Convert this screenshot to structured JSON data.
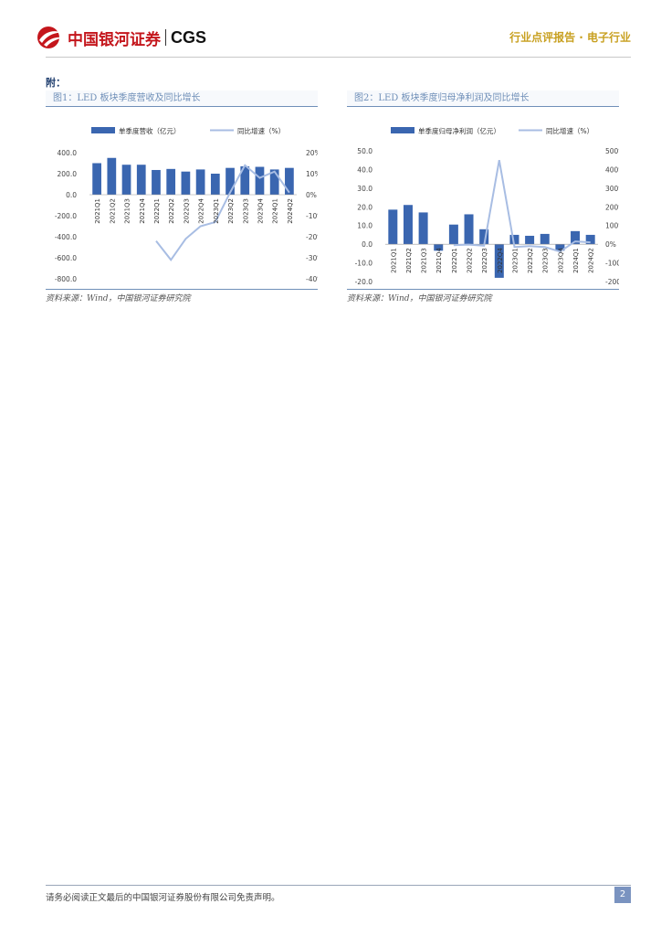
{
  "header": {
    "brand_cn": "中国银河证券",
    "brand_en": "CGS",
    "report_type": "行业点评报告 · 电子行业",
    "brand_color": "#c4161c"
  },
  "appendix_label": "附：",
  "figures": [
    {
      "title": "图1：LED 板块季度营收及同比增长",
      "source": "资料来源：Wind，中国银河证券研究院"
    },
    {
      "title": "图2：LED 板块季度归母净利润及同比增长",
      "source": "资料来源：Wind，中国银河证券研究院"
    }
  ],
  "chart_data": [
    {
      "type": "bar",
      "categories": [
        "2021Q1",
        "2021Q2",
        "2021Q3",
        "2021Q4",
        "2022Q1",
        "2022Q2",
        "2022Q3",
        "2022Q4",
        "2023Q1",
        "2023Q2",
        "2023Q3",
        "2023Q4",
        "2024Q1",
        "2024Q2"
      ],
      "series": [
        {
          "name": "单季度营收（亿元）",
          "type": "bar",
          "axis": "left",
          "color": "#3a66b0",
          "values": [
            300,
            350,
            285,
            285,
            235,
            245,
            220,
            240,
            200,
            255,
            270,
            265,
            240,
            255
          ]
        },
        {
          "name": "同比增速（%）",
          "type": "line",
          "axis": "right",
          "color": "#a8bde3",
          "values": [
            null,
            null,
            null,
            null,
            -22,
            -31,
            -21,
            -15,
            -13,
            1,
            14,
            8,
            11,
            1
          ]
        }
      ],
      "left_axis": {
        "ticks": [
          "400.0",
          "200.0",
          "0.0",
          "-200.0",
          "-400.0",
          "-600.0",
          "-800.0"
        ],
        "range": [
          -800,
          400
        ]
      },
      "right_axis": {
        "ticks": [
          "20%",
          "10%",
          "0%",
          "-10%",
          "-20%",
          "-30%",
          "-40%"
        ],
        "range": [
          -40,
          20
        ]
      }
    },
    {
      "type": "bar",
      "categories": [
        "2021Q1",
        "2021Q2",
        "2021Q3",
        "2021Q4",
        "2022Q1",
        "2022Q2",
        "2022Q3",
        "2022Q4",
        "2023Q1",
        "2023Q2",
        "2023Q3",
        "2023Q4",
        "2024Q1",
        "2024Q2"
      ],
      "series": [
        {
          "name": "单季度归母净利润（亿元）",
          "type": "bar",
          "axis": "left",
          "color": "#3a66b0",
          "values": [
            18.5,
            21,
            17,
            -3.5,
            10.5,
            16,
            8,
            -18,
            5,
            4.5,
            5.5,
            -3.5,
            7,
            5
          ]
        },
        {
          "name": "同比增速（%）",
          "type": "line",
          "axis": "right",
          "color": "#a8bde3",
          "values": [
            null,
            null,
            null,
            null,
            -5,
            -2,
            -8,
            450,
            -15,
            -10,
            -15,
            -40,
            15,
            10
          ]
        }
      ],
      "left_axis": {
        "ticks": [
          "50.0",
          "40.0",
          "30.0",
          "20.0",
          "10.0",
          "0.0",
          "-10.0",
          "-20.0"
        ],
        "range": [
          -20,
          50
        ]
      },
      "right_axis": {
        "ticks": [
          "500%",
          "400%",
          "300%",
          "200%",
          "100%",
          "0%",
          "-100%",
          "-200%"
        ],
        "range": [
          -200,
          500
        ]
      }
    }
  ],
  "footer": {
    "disclaimer": "请务必阅读正文最后的中国银河证券股份有限公司免责声明。",
    "page_number": "2"
  }
}
